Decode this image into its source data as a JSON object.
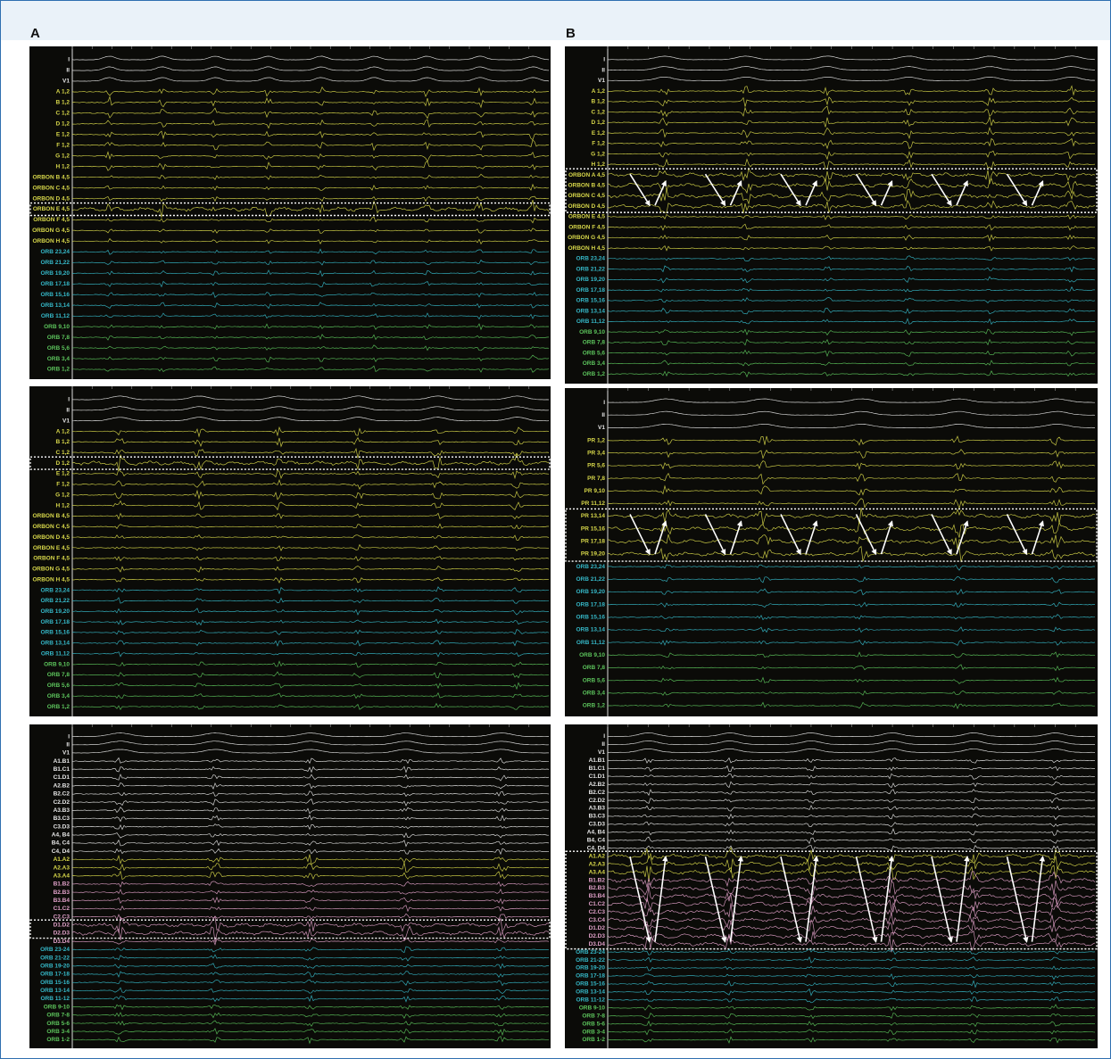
{
  "column_labels": [
    "A",
    "B"
  ],
  "panels": [
    {
      "column": 0,
      "groups": [
        {
          "color": "#e8e8e8",
          "channels": [
            "I",
            "II",
            "V1"
          ]
        },
        {
          "color": "#d8d84a",
          "channels": [
            "A 1,2",
            "B 1,2",
            "C 1,2",
            "D 1,2",
            "E 1,2",
            "F 1,2",
            "G 1,2",
            "H 1,2"
          ]
        },
        {
          "color": "#d8d84a",
          "channels": [
            "ORBON B 4,5",
            "ORBON C 4,5",
            "ORBON D 4,5",
            "ORBON E 4,5",
            "ORBON F 4,5",
            "ORBON G 4,5",
            "ORBON H 4,5"
          ]
        },
        {
          "color": "#35b8c8",
          "channels": [
            "ORB 23,24",
            "ORB 21,22",
            "ORB 19,20",
            "ORB 17,18",
            "ORB 15,16",
            "ORB 13,14",
            "ORB 11,12"
          ]
        },
        {
          "color": "#5cc45c",
          "channels": [
            "ORB 9,10",
            "ORB 7,8",
            "ORB 5,6",
            "ORB 3,4",
            "ORB 1,2"
          ]
        }
      ]
    },
    {
      "column": 0,
      "groups": [
        {
          "color": "#e8e8e8",
          "channels": [
            "I",
            "II",
            "V1"
          ]
        },
        {
          "color": "#d8d84a",
          "channels": [
            "A 1,2",
            "B 1,2",
            "C 1,2",
            "D 1,2",
            "E 1,2",
            "F 1,2",
            "G 1,2",
            "H 1,2"
          ]
        },
        {
          "color": "#d8d84a",
          "channels": [
            "ORBON B 4,5",
            "ORBON C 4,5",
            "ORBON D 4,5",
            "ORBON E 4,5",
            "ORBON F 4,5",
            "ORBON G 4,5",
            "ORBON H 4,5"
          ]
        },
        {
          "color": "#35b8c8",
          "channels": [
            "ORB 23,24",
            "ORB 21,22",
            "ORB 19,20",
            "ORB 17,18",
            "ORB 15,16",
            "ORB 13,14",
            "ORB 11,12"
          ]
        },
        {
          "color": "#5cc45c",
          "channels": [
            "ORB 9,10",
            "ORB 7,8",
            "ORB 5,6",
            "ORB 3,4",
            "ORB 1,2"
          ]
        }
      ]
    },
    {
      "column": 0,
      "groups": [
        {
          "color": "#e8e8e8",
          "channels": [
            "I",
            "II",
            "V1",
            "A1.B1",
            "B1.C1",
            "C1.D1",
            "A2.B2",
            "B2.C2",
            "C2.D2",
            "A3.B3",
            "B3.C3",
            "C3.D3",
            "A4, B4",
            "B4, C4",
            "C4, D4"
          ]
        },
        {
          "color": "#d8d84a",
          "channels": [
            "A1.A2",
            "A2.A3",
            "A3.A4"
          ]
        },
        {
          "color": "#e0a0c8",
          "channels": [
            "B1.B2",
            "B2.B3",
            "B3.B4",
            "C1.C2",
            "C2.C3",
            "D1.D2",
            "D2.D3",
            "D3.D4"
          ]
        },
        {
          "color": "#35b8c8",
          "channels": [
            "ORB 23-24",
            "ORB 21-22",
            "ORB 19-20",
            "ORB 17-18",
            "ORB 15-16",
            "ORB 13-14",
            "ORB 11-12"
          ]
        },
        {
          "color": "#5cc45c",
          "channels": [
            "ORB 9-10",
            "ORB 7-8",
            "ORB 5-6",
            "ORB 3-4",
            "ORB 1-2"
          ]
        }
      ]
    },
    {
      "column": 1,
      "groups": [
        {
          "color": "#e8e8e8",
          "channels": [
            "I",
            "II",
            "V1"
          ]
        },
        {
          "color": "#d8d84a",
          "channels": [
            "A 1,2",
            "B 1,2",
            "C 1,2",
            "D 1,2",
            "E 1,2",
            "F 1,2",
            "G 1,2",
            "H 1,2"
          ]
        },
        {
          "color": "#d8d84a",
          "channels": [
            "ORBON A 4,5",
            "ORBON B 4,5",
            "ORBON C 4,5",
            "ORBON D 4,5",
            "ORBON E 4,5",
            "ORBON F 4,5",
            "ORBON G 4,5",
            "ORBON H 4,5"
          ]
        },
        {
          "color": "#35b8c8",
          "channels": [
            "ORB 23,24",
            "ORB 21,22",
            "ORB 19,20",
            "ORB 17,18",
            "ORB 15,16",
            "ORB 13,14",
            "ORB 11,12"
          ]
        },
        {
          "color": "#5cc45c",
          "channels": [
            "ORB 9,10",
            "ORB 7,8",
            "ORB 5,6",
            "ORB 3,4",
            "ORB 1,2"
          ]
        }
      ]
    },
    {
      "column": 1,
      "groups": [
        {
          "color": "#e8e8e8",
          "channels": [
            "I",
            "II",
            "V1"
          ]
        },
        {
          "color": "#d8d84a",
          "channels": [
            "PR 1,2",
            "PR 3,4",
            "PR 5,6",
            "PR 7,8",
            "PR 9,10",
            "PR 11,12",
            "PR 13,14",
            "PR 15,16",
            "PR 17,18",
            "PR 19,20"
          ]
        },
        {
          "color": "#35b8c8",
          "channels": [
            "ORB 23,24",
            "ORB 21,22",
            "ORB 19,20",
            "ORB 17,18",
            "ORB 15,16",
            "ORB 13,14",
            "ORB 11,12"
          ]
        },
        {
          "color": "#5cc45c",
          "channels": [
            "ORB 9,10",
            "ORB 7,8",
            "ORB 5,6",
            "ORB 3,4",
            "ORB 1,2"
          ]
        }
      ]
    },
    {
      "column": 1,
      "groups": [
        {
          "color": "#e8e8e8",
          "channels": [
            "I",
            "II",
            "V1",
            "A1.B1",
            "B1.C1",
            "C1.D1",
            "A2.B2",
            "B2.C2",
            "C2.D2",
            "A3.B3",
            "B3.C3",
            "C3.D3",
            "A4, B4",
            "B4, C4",
            "C4, D4"
          ]
        },
        {
          "color": "#d8d84a",
          "channels": [
            "A1.A2",
            "A2.A3",
            "A3.A4"
          ]
        },
        {
          "color": "#e0a0c8",
          "channels": [
            "B1.B2",
            "B2.B3",
            "B3.B4",
            "C1.C2",
            "C2.C3",
            "C3.C4",
            "D1.D2",
            "D2.D3",
            "D3.D4"
          ]
        },
        {
          "color": "#35b8c8",
          "channels": [
            "ORB 23-24",
            "ORB 21-22",
            "ORB 19-20",
            "ORB 17-18",
            "ORB 15-16",
            "ORB 13-14",
            "ORB 11-12"
          ]
        },
        {
          "color": "#5cc45c",
          "channels": [
            "ORB 9-10",
            "ORB 7-8",
            "ORB 5-6",
            "ORB 3-4",
            "ORB 1-2"
          ]
        }
      ]
    }
  ]
}
